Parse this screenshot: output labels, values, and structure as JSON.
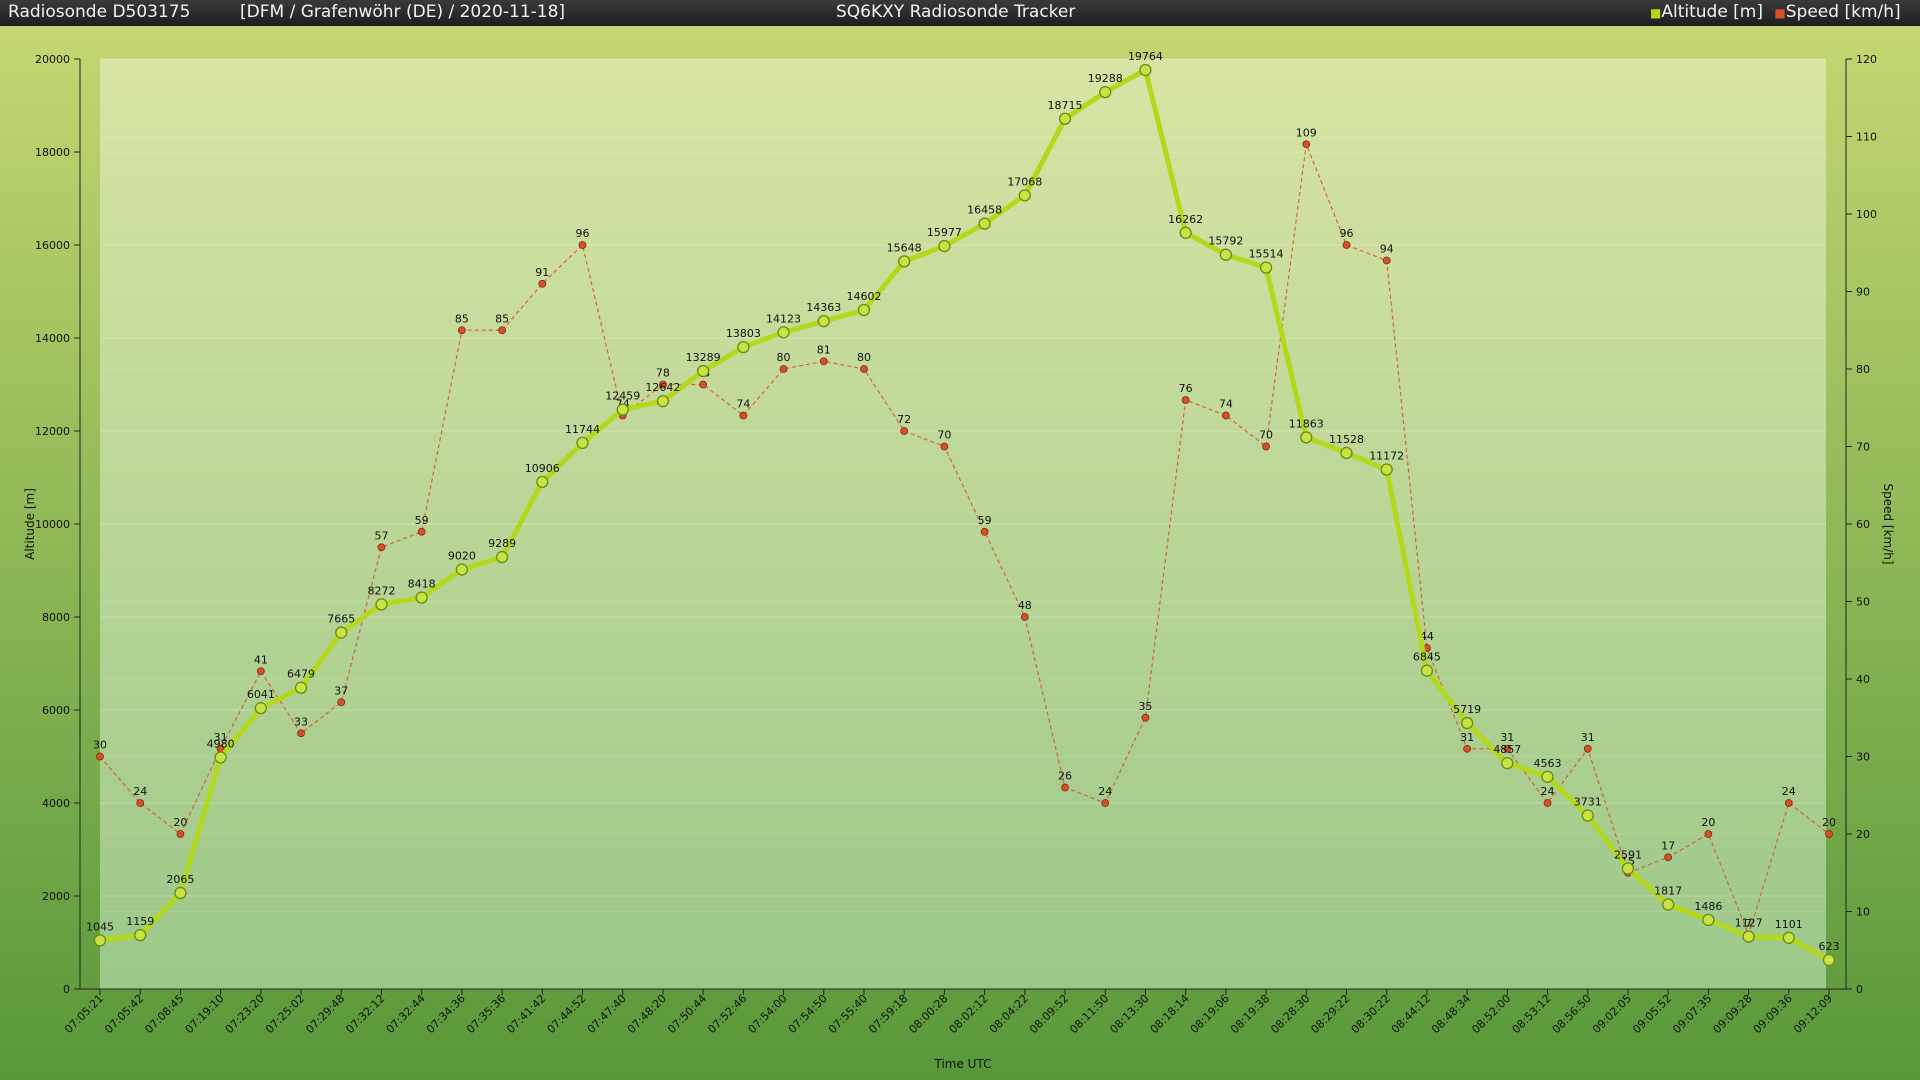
{
  "header": {
    "left_title": "Radiosonde D503175",
    "mission": "[DFM / Grafenwöhr (DE) / 2020-11-18]",
    "app_title": "SQ6KXY Radiosonde Tracker"
  },
  "colors": {
    "altitude": "#b4d81c",
    "speed": "#d8502a",
    "plot_top": "#d8e4a4",
    "plot_bottom": "#9cc88a"
  },
  "chart_data": {
    "type": "line",
    "xlabel": "Time UTC",
    "ylabel_left": "Altitude [m]",
    "ylabel_right": "Speed [km/h]",
    "ylim_left": [
      0,
      20000
    ],
    "ylim_right": [
      0,
      120
    ],
    "yticks_left": [
      0,
      2000,
      4000,
      6000,
      8000,
      10000,
      12000,
      14000,
      16000,
      18000,
      20000
    ],
    "yticks_right": [
      0,
      10,
      20,
      30,
      40,
      50,
      60,
      70,
      80,
      90,
      100,
      110,
      120
    ],
    "grid": true,
    "legend_position": "top-right",
    "x": [
      "07:05:21",
      "07:05:42",
      "07:08:45",
      "07:19:10",
      "07:23:20",
      "07:25:02",
      "07:29:48",
      "07:32:12",
      "07:32:44",
      "07:34:36",
      "07:35:36",
      "07:41:42",
      "07:44:52",
      "07:47:40",
      "07:48:20",
      "07:50:44",
      "07:52:46",
      "07:54:00",
      "07:54:50",
      "07:55:40",
      "07:59:18",
      "08:00:28",
      "08:02:12",
      "08:04:22",
      "08:09:52",
      "08:11:50",
      "08:13:30",
      "08:18:14",
      "08:19:06",
      "08:19:38",
      "08:28:30",
      "08:29:22",
      "08:30:22",
      "08:44:12",
      "08:48:34",
      "08:52:00",
      "08:53:12",
      "08:56:50",
      "09:02:05",
      "09:05:52",
      "09:07:35",
      "09:09:28",
      "09:09:36",
      "09:12:09"
    ],
    "series": [
      {
        "name": "Altitude [m]",
        "axis": "left",
        "values": [
          1045,
          1159,
          2065,
          4980,
          6041,
          6479,
          7665,
          8272,
          8418,
          9020,
          9289,
          10906,
          11744,
          12459,
          12642,
          13289,
          13803,
          14123,
          14363,
          14602,
          15648,
          15977,
          16458,
          17068,
          18715,
          19288,
          19764,
          16262,
          15792,
          15514,
          11863,
          11528,
          11172,
          6845,
          5719,
          4857,
          4563,
          3731,
          2591,
          1817,
          1486,
          1127,
          1101,
          623
        ]
      },
      {
        "name": "Speed [km/h]",
        "axis": "right",
        "values": [
          30,
          24,
          20,
          31,
          41,
          33,
          37,
          57,
          59,
          85,
          85,
          91,
          96,
          74,
          78,
          78,
          74,
          80,
          81,
          80,
          72,
          70,
          59,
          48,
          26,
          24,
          35,
          76,
          74,
          70,
          109,
          96,
          94,
          44,
          31,
          31,
          24,
          31,
          15,
          17,
          20,
          7,
          24,
          20
        ]
      }
    ]
  }
}
